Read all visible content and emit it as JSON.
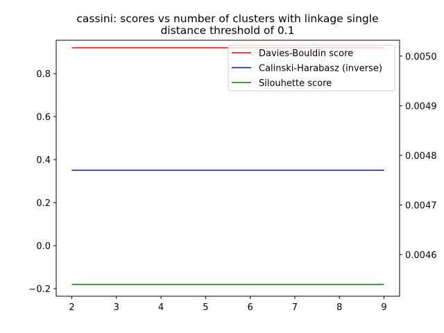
{
  "chart_data": {
    "type": "line",
    "title": "cassini: scores vs number of clusters with linkage single",
    "subtitle": "distance threshold of 0.1",
    "x": [
      2,
      3,
      4,
      5,
      6,
      7,
      8,
      9
    ],
    "x_ticks": [
      "2",
      "3",
      "4",
      "5",
      "6",
      "7",
      "8",
      "9"
    ],
    "xlim": [
      1.65,
      9.35
    ],
    "left_axis": {
      "ylim": [
        -0.235,
        0.955
      ],
      "ticks": [
        -0.2,
        0.0,
        0.2,
        0.4,
        0.6,
        0.8
      ],
      "tick_labels": [
        "−0.2",
        "0.0",
        "0.2",
        "0.4",
        "0.6",
        "0.8"
      ]
    },
    "right_axis": {
      "ylim": [
        0.004516,
        0.005032
      ],
      "ticks": [
        0.0046,
        0.0047,
        0.0048,
        0.0049,
        0.005
      ],
      "tick_labels": [
        "0.0046",
        "0.0047",
        "0.0048",
        "0.0049",
        "0.0050"
      ]
    },
    "series": [
      {
        "name": "Davies-Bouldin score",
        "axis": "left",
        "color": "#ff0000",
        "values": [
          0.92,
          0.92,
          0.92,
          0.92,
          0.92,
          0.92,
          0.92,
          0.92
        ]
      },
      {
        "name": "Calinski-Harabasz (inverse)",
        "axis": "right",
        "color": "#0000ff",
        "values": [
          0.00477,
          0.00477,
          0.00477,
          0.00477,
          0.00477,
          0.00477,
          0.00477,
          0.00477
        ]
      },
      {
        "name": "Silouhette score",
        "axis": "left",
        "color": "#008000",
        "values": [
          -0.18,
          -0.18,
          -0.18,
          -0.18,
          -0.18,
          -0.18,
          -0.18,
          -0.18
        ]
      }
    ],
    "legend": "top-right",
    "grid": false
  }
}
